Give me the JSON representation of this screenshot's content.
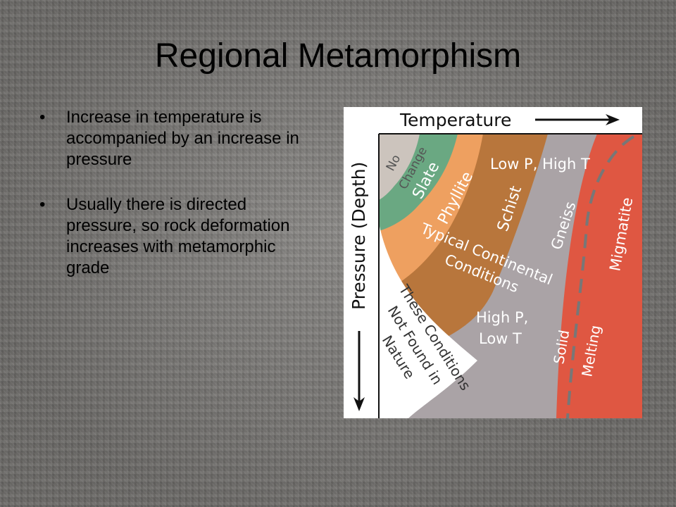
{
  "slide": {
    "title": "Regional Metamorphism",
    "bullets": [
      "Increase in temperature is accompanied by an increase in pressure",
      "Usually there is directed pressure, so rock deformation increases with metamorphic grade"
    ],
    "bullet_marker": "•"
  },
  "diagram": {
    "axis_top": "Temperature",
    "axis_left": "Pressure (Depth)",
    "labels": {
      "no_change_1": "No",
      "no_change_2": "Change",
      "slate": "Slate",
      "phyllite": "Phyllite",
      "schist": "Schist",
      "low_p_high_t": "Low P, High T",
      "gneiss": "Gneiss",
      "migmatite": "Migmatite",
      "typical_1": "Typical Continental",
      "typical_2": "Conditions",
      "high_p_low_t_1": "High P,",
      "high_p_low_t_2": "Low T",
      "solid": "Solid",
      "melting": "Melting",
      "not_found_1": "These Conditions",
      "not_found_2": "Not Found in",
      "not_found_3": "Nature"
    },
    "colors": {
      "no_change": "#ccc4bd",
      "slate": "#6aa882",
      "phyllite": "#eea060",
      "schist": "#b8763c",
      "gneiss": "#aaa3a6",
      "migmatite": "#df5742",
      "nature": "#ffffff",
      "frame": "#111111"
    }
  }
}
